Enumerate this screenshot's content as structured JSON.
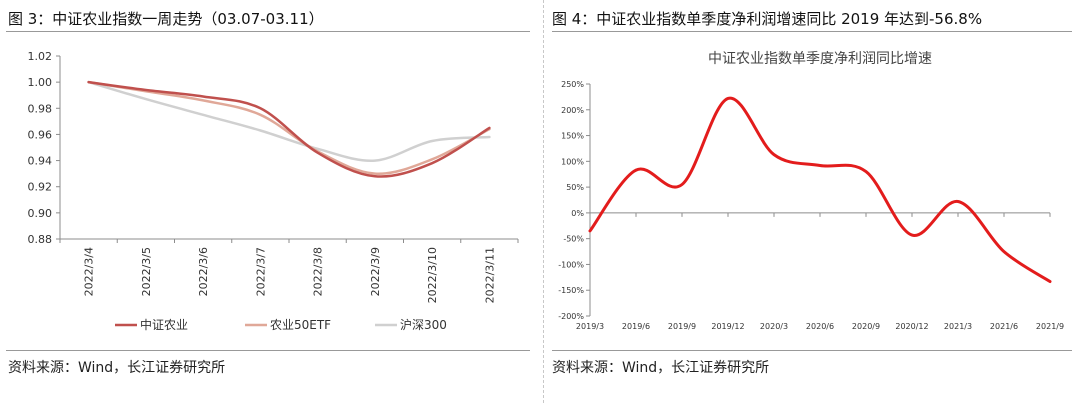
{
  "left": {
    "figure_title": "图 3：中证农业指数一周走势（03.07-03.11）",
    "source": "资料来源：Wind，长江证券研究所"
  },
  "right": {
    "figure_title": "图 4：中证农业指数单季度净利润增速同比 2019 年达到-56.8%",
    "source": "资料来源：Wind，长江证券研究所"
  },
  "colors": {
    "zhongzheng_agri": "#c0504d",
    "agri50etf": "#e0a898",
    "hs300": "#d0d0d0",
    "growth_line": "#e31c1c",
    "axis": "#8c8c8c",
    "grid": "#d9d9d9"
  },
  "chart_data": [
    {
      "type": "line",
      "title": "",
      "xlabel": "",
      "ylabel": "",
      "categories": [
        "2022/3/4",
        "2022/3/5",
        "2022/3/6",
        "2022/3/7",
        "2022/3/8",
        "2022/3/9",
        "2022/3/10",
        "2022/3/11"
      ],
      "ylim": [
        0.88,
        1.02
      ],
      "yticks": [
        0.88,
        0.9,
        0.92,
        0.94,
        0.96,
        0.98,
        1.0,
        1.02
      ],
      "ytick_labels": [
        "0.88",
        "0.90",
        "0.92",
        "0.94",
        "0.96",
        "0.98",
        "1.00",
        "1.02"
      ],
      "grid": false,
      "legend_position": "bottom",
      "series": [
        {
          "name": "中证农业",
          "values": [
            1.0,
            0.994,
            0.989,
            0.98,
            0.946,
            0.928,
            0.938,
            0.965
          ]
        },
        {
          "name": "农业50ETF",
          "values": [
            1.0,
            0.993,
            0.986,
            0.975,
            0.947,
            0.93,
            0.941,
            0.964
          ]
        },
        {
          "name": "沪深300",
          "values": [
            1.0,
            0.987,
            0.975,
            0.963,
            0.949,
            0.94,
            0.955,
            0.958
          ]
        }
      ]
    },
    {
      "type": "line",
      "title": "中证农业指数单季度净利润同比增速",
      "xlabel": "",
      "ylabel": "",
      "categories": [
        "2019/3",
        "2019/6",
        "2019/9",
        "2019/12",
        "2020/3",
        "2020/6",
        "2020/9",
        "2020/12",
        "2021/3",
        "2021/6",
        "2021/9"
      ],
      "ylim": [
        -200,
        250
      ],
      "yticks": [
        -200,
        -150,
        -100,
        -50,
        0,
        50,
        100,
        150,
        200,
        250
      ],
      "ytick_labels": [
        "-200%",
        "-150%",
        "-100%",
        "-50%",
        "0%",
        "50%",
        "100%",
        "150%",
        "200%",
        "250%"
      ],
      "grid": false,
      "series": [
        {
          "name": "",
          "values": [
            -35,
            83,
            55,
            222,
            113,
            92,
            80,
            -43,
            22,
            -75,
            -133
          ]
        }
      ]
    }
  ]
}
